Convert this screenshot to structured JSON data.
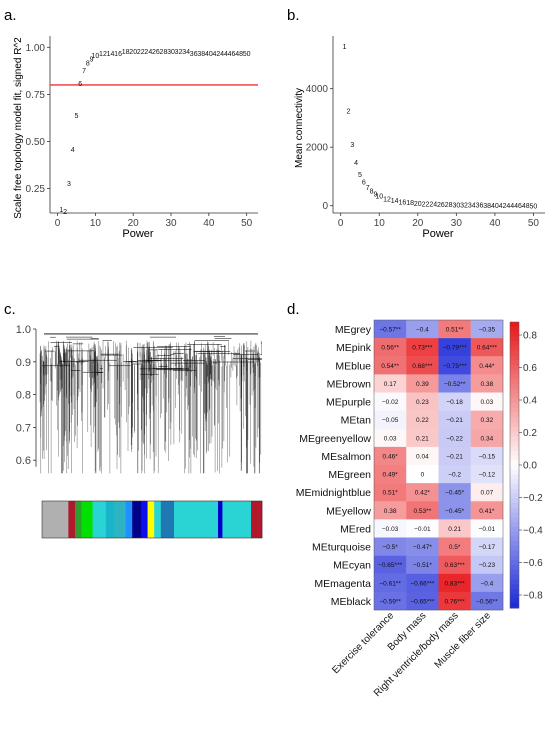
{
  "panels": {
    "a": "a.",
    "b": "b.",
    "c": "c.",
    "d": "d."
  },
  "colors": {
    "threshold_line": "#ee3333",
    "heatmap_low": "#1f2bd8",
    "heatmap_mid": "#ffffff",
    "heatmap_high": "#e8191c",
    "dendrogram": "#000000"
  },
  "chart_data": [
    {
      "id": "a",
      "type": "scatter",
      "marker": "text-labels",
      "title": "",
      "xlabel": "Power",
      "ylabel": "Scale free topology model fit, signed R^2",
      "xlim": [
        -2,
        53
      ],
      "ylim": [
        0.12,
        1.06
      ],
      "xticks": [
        "0",
        "10",
        "20",
        "30",
        "40",
        "50"
      ],
      "yticks": [
        "0.25",
        "0.50",
        "0.75",
        "1.00"
      ],
      "threshold": 0.8,
      "labels": [
        "1",
        "2",
        "3",
        "4",
        "5",
        "6",
        "7",
        "8",
        "9",
        "10",
        "12",
        "14",
        "16",
        "18",
        "20",
        "22",
        "24",
        "26",
        "28",
        "30",
        "32",
        "34",
        "36",
        "38",
        "40",
        "42",
        "44",
        "46",
        "48",
        "50"
      ],
      "x": [
        1,
        2,
        3,
        4,
        5,
        6,
        7,
        8,
        9,
        10,
        12,
        14,
        16,
        18,
        20,
        22,
        24,
        26,
        28,
        30,
        32,
        34,
        36,
        38,
        40,
        42,
        44,
        46,
        48,
        50
      ],
      "y": [
        0.14,
        0.13,
        0.28,
        0.46,
        0.64,
        0.81,
        0.88,
        0.92,
        0.94,
        0.96,
        0.97,
        0.97,
        0.97,
        0.98,
        0.98,
        0.98,
        0.98,
        0.98,
        0.98,
        0.98,
        0.98,
        0.98,
        0.97,
        0.97,
        0.97,
        0.97,
        0.97,
        0.97,
        0.97,
        0.97
      ]
    },
    {
      "id": "b",
      "type": "scatter",
      "marker": "text-labels",
      "title": "",
      "xlabel": "Power",
      "ylabel": "Mean connectivity",
      "xlim": [
        -2,
        53
      ],
      "ylim": [
        -250,
        5800
      ],
      "xticks": [
        "0",
        "10",
        "20",
        "30",
        "40",
        "50"
      ],
      "yticks": [
        "0",
        "2000",
        "4000"
      ],
      "labels": [
        "1",
        "2",
        "3",
        "4",
        "5",
        "6",
        "7",
        "8",
        "9",
        "10",
        "12",
        "14",
        "16",
        "18",
        "20",
        "22",
        "24",
        "26",
        "28",
        "30",
        "32",
        "34",
        "36",
        "38",
        "40",
        "42",
        "44",
        "46",
        "48",
        "50"
      ],
      "x": [
        1,
        2,
        3,
        4,
        5,
        6,
        7,
        8,
        9,
        10,
        12,
        14,
        16,
        18,
        20,
        22,
        24,
        26,
        28,
        30,
        32,
        34,
        36,
        38,
        40,
        42,
        44,
        46,
        48,
        50
      ],
      "y": [
        5450,
        3250,
        2100,
        1500,
        1080,
        820,
        640,
        520,
        420,
        350,
        250,
        190,
        150,
        120,
        100,
        80,
        70,
        60,
        50,
        45,
        40,
        36,
        32,
        28,
        25,
        22,
        20,
        18,
        16,
        14
      ]
    },
    {
      "id": "c",
      "type": "dendrogram",
      "title": "",
      "ylim": [
        0.5,
        1.0
      ],
      "yticks": [
        "0.6",
        "0.7",
        "0.8",
        "0.9",
        "1.0"
      ],
      "module_colors": [
        "#b0b0b0",
        "#b2182b",
        "#2ca02c",
        "#00e000",
        "#2bd4d4",
        "#18b4c8",
        "#2db3c2",
        "#1e90ff",
        "#00008b",
        "#0d0df0",
        "#ffff00",
        "#2bd4d4",
        "#1f77b4",
        "#2bd4d4",
        "#0000cd",
        "#2bd4d4",
        "#b2182b"
      ],
      "module_widths": [
        0.12,
        0.03,
        0.03,
        0.05,
        0.06,
        0.04,
        0.05,
        0.03,
        0.04,
        0.03,
        0.03,
        0.03,
        0.06,
        0.2,
        0.02,
        0.13,
        0.05
      ]
    },
    {
      "id": "d",
      "type": "heatmap",
      "title": "",
      "xlabel": "",
      "ylabel": "",
      "rows": [
        "MEgrey",
        "MEpink",
        "MEblue",
        "MEbrown",
        "MEpurple",
        "MEtan",
        "MEgreenyellow",
        "MEsalmon",
        "MEgreen",
        "MEmidnightblue",
        "MEyellow",
        "MEred",
        "MEturquoise",
        "MEcyan",
        "MEmagenta",
        "MEblack"
      ],
      "columns": [
        "Exercise tolerance",
        "Body mass",
        "Right ventricle/body mass",
        "Muscle fiber size"
      ],
      "values": [
        [
          -0.57,
          -0.4,
          0.51,
          -0.35
        ],
        [
          0.56,
          0.73,
          -0.79,
          0.64
        ],
        [
          0.54,
          0.68,
          -0.75,
          0.44
        ],
        [
          0.17,
          0.39,
          -0.52,
          0.38
        ],
        [
          -0.02,
          0.23,
          -0.18,
          0.03
        ],
        [
          -0.05,
          0.22,
          -0.21,
          0.32
        ],
        [
          0.03,
          0.21,
          -0.22,
          0.34
        ],
        [
          0.46,
          0.04,
          -0.21,
          -0.15
        ],
        [
          0.49,
          0,
          -0.2,
          -0.12
        ],
        [
          0.51,
          0.42,
          -0.45,
          0.07
        ],
        [
          0.38,
          0.53,
          -0.45,
          0.41
        ],
        [
          -0.03,
          -0.01,
          0.21,
          -0.01
        ],
        [
          -0.5,
          -0.47,
          0.5,
          -0.17
        ],
        [
          -0.65,
          -0.51,
          0.63,
          -0.23
        ],
        [
          -0.61,
          -0.66,
          0.83,
          -0.4
        ],
        [
          -0.59,
          -0.65,
          0.76,
          -0.56
        ]
      ],
      "cell_labels": [
        [
          "−0.57**",
          "−0.4",
          "0.51**",
          "−0.35"
        ],
        [
          "0.56**",
          "0.73***",
          "−0.79***",
          "0.64***"
        ],
        [
          "0.54**",
          "0.68***",
          "−0.75***",
          "0.44*"
        ],
        [
          "0.17",
          "0.39",
          "−0.52**",
          "0.38"
        ],
        [
          "−0.02",
          "0.23",
          "−0.18",
          "0.03"
        ],
        [
          "−0.05",
          "0.22",
          "−0.21",
          "0.32"
        ],
        [
          "0.03",
          "0.21",
          "−0.22",
          "0.34"
        ],
        [
          "0.46*",
          "0.04",
          "−0.21",
          "−0.15"
        ],
        [
          "0.49*",
          "0",
          "−0.2",
          "−0.12"
        ],
        [
          "0.51*",
          "0.42*",
          "−0.45*",
          "0.07"
        ],
        [
          "0.38",
          "0.53**",
          "−0.45*",
          "0.41*"
        ],
        [
          "−0.03",
          "−0.01",
          "0.21",
          "−0.01"
        ],
        [
          "−0.5*",
          "−0.47*",
          "0.5*",
          "−0.17"
        ],
        [
          "−0.65***",
          "−0.51*",
          "0.63***",
          "−0.23"
        ],
        [
          "−0.61**",
          "−0.66***",
          "0.83***",
          "−0.4"
        ],
        [
          "−0.59**",
          "−0.65***",
          "0.76***",
          "−0.56**"
        ]
      ],
      "colorbar_ticks": [
        "0.8",
        "0.6",
        "0.4",
        "0.2",
        "0.0",
        "−0.2",
        "−0.4",
        "−0.6",
        "−0.8"
      ],
      "colorbar_values": [
        0.8,
        0.6,
        0.4,
        0.2,
        0.0,
        -0.2,
        -0.4,
        -0.6,
        -0.8
      ],
      "zlim": [
        -0.88,
        0.88
      ]
    }
  ]
}
